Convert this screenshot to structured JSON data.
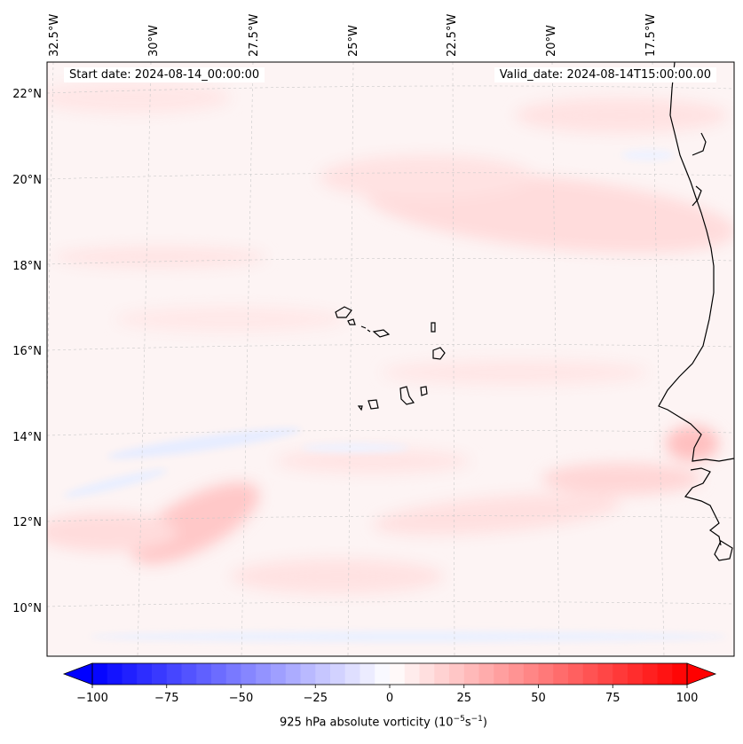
{
  "header": {
    "start_date": "Start date: 2024-08-14_00:00:00",
    "valid_date": "Valid_date: 2024-08-14T15:00:00.00"
  },
  "map": {
    "longitude_labels": [
      "32.5°W",
      "30°W",
      "27.5°W",
      "25°W",
      "22.5°W",
      "20°W",
      "17.5°W"
    ],
    "latitude_labels": [
      "22°N",
      "20°N",
      "18°N",
      "16°N",
      "14°N",
      "12°N",
      "10°N"
    ],
    "field_colors": {
      "background": "#fdf3f3",
      "positive": "#ffdcdc",
      "strong_positive": "#ffc4c4",
      "negative": "#e8eeff"
    }
  },
  "colorbar": {
    "label_text": "925 hPa absolute vorticity (10",
    "label_exp1": "−5",
    "label_mid": "s",
    "label_exp2": "−1",
    "label_close": ")",
    "min": -100,
    "max": 100,
    "tick_labels": [
      "−100",
      "−75",
      "−50",
      "−25",
      "0",
      "25",
      "50",
      "75",
      "100"
    ],
    "colors": {
      "negative": "#0000ff",
      "zero": "#ffffff",
      "positive": "#ff0000"
    }
  }
}
